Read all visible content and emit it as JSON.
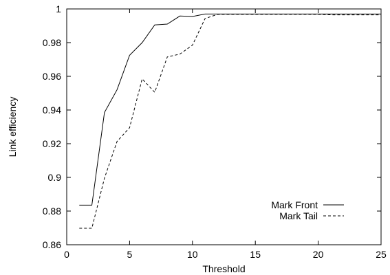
{
  "chart_data": {
    "type": "line",
    "xlabel": "Threshold",
    "ylabel": "Link efficiency",
    "xlim": [
      0,
      25
    ],
    "ylim": [
      0.86,
      1
    ],
    "xticks": [
      0,
      5,
      10,
      15,
      20,
      25
    ],
    "yticks": [
      0.86,
      0.88,
      0.9,
      0.92,
      0.94,
      0.96,
      0.98,
      1
    ],
    "xtick_labels": [
      "0",
      "5",
      "10",
      "15",
      "20",
      "25"
    ],
    "ytick_labels": [
      "0.86",
      "0.88",
      "0.9",
      "0.92",
      "0.94",
      "0.96",
      "0.98",
      "1"
    ],
    "grid": false,
    "legend_position": "bottom-right",
    "series": [
      {
        "name": "Mark Front",
        "style": "solid",
        "color": "#000000",
        "x": [
          1,
          2,
          3,
          4,
          5,
          6,
          7,
          8,
          9,
          10,
          11,
          12,
          13,
          14,
          15,
          16,
          17,
          18,
          19,
          20,
          21,
          22,
          23,
          24,
          25
        ],
        "y": [
          0.8835,
          0.8835,
          0.9385,
          0.952,
          0.9725,
          0.98,
          0.9905,
          0.991,
          0.9958,
          0.9955,
          0.997,
          0.997,
          0.997,
          0.997,
          0.997,
          0.997,
          0.997,
          0.997,
          0.997,
          0.997,
          0.997,
          0.997,
          0.997,
          0.997,
          0.997
        ]
      },
      {
        "name": "Mark Tail",
        "style": "dashed",
        "color": "#000000",
        "x": [
          1,
          2,
          3,
          4,
          5,
          6,
          7,
          8,
          9,
          10,
          11,
          12,
          13,
          14,
          15,
          16,
          17,
          18,
          19,
          20,
          21,
          22,
          23,
          24,
          25
        ],
        "y": [
          0.8698,
          0.8698,
          0.8995,
          0.9213,
          0.9295,
          0.9585,
          0.9505,
          0.9715,
          0.9732,
          0.9785,
          0.9943,
          0.9968,
          0.9968,
          0.9968,
          0.9968,
          0.9968,
          0.9968,
          0.9968,
          0.9968,
          0.9968,
          0.9965,
          0.9965,
          0.9965,
          0.9965,
          0.9965
        ]
      }
    ]
  }
}
